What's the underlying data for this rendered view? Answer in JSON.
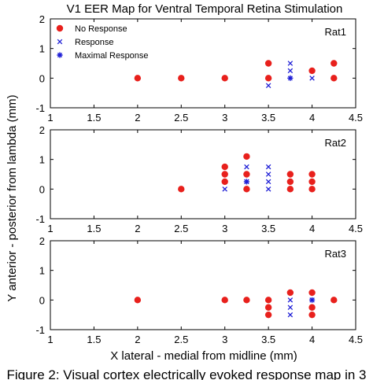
{
  "title": "V1 EER Map for Ventral Temporal Retina Stimulation",
  "xlabel": "X lateral - medial from midline (mm)",
  "ylabel": "Y anterior - posterior from lambda (mm)",
  "caption": "Figure 2: Visual cortex electrically evoked response map in 3",
  "legend": [
    {
      "label": "No Response",
      "marker": "dot",
      "color": "#e8201c"
    },
    {
      "label": "Response",
      "marker": "x",
      "color": "#1f1fd6"
    },
    {
      "label": "Maximal Response",
      "marker": "star",
      "color": "#1f1fd6"
    }
  ],
  "colors": {
    "no_response": "#e8201c",
    "response": "#1f1fd6"
  },
  "chart_data": [
    {
      "type": "scatter",
      "panel": "Rat1",
      "xlim": [
        1,
        4.5
      ],
      "ylim": [
        -1,
        2
      ],
      "xticks": [
        "1",
        "1.5",
        "2",
        "2.5",
        "3",
        "3.5",
        "4",
        "4.5"
      ],
      "yticks": [
        "-1",
        "0",
        "1",
        "2"
      ],
      "series": [
        {
          "name": "No Response",
          "points": [
            [
              2,
              0
            ],
            [
              2.5,
              0
            ],
            [
              3,
              0
            ],
            [
              3.5,
              0
            ],
            [
              3.5,
              0.5
            ],
            [
              4,
              0.25
            ],
            [
              4.25,
              0
            ],
            [
              4.25,
              0.5
            ]
          ]
        },
        {
          "name": "Response",
          "points": [
            [
              3.5,
              -0.25
            ],
            [
              3.75,
              0.5
            ],
            [
              3.75,
              0.25
            ],
            [
              4,
              0
            ]
          ]
        },
        {
          "name": "Maximal Response",
          "points": [
            [
              3.75,
              0
            ]
          ]
        }
      ]
    },
    {
      "type": "scatter",
      "panel": "Rat2",
      "xlim": [
        1,
        4.5
      ],
      "ylim": [
        -1,
        2
      ],
      "xticks": [
        "1",
        "1.5",
        "2",
        "2.5",
        "3",
        "3.5",
        "4",
        "4.5"
      ],
      "yticks": [
        "-1",
        "0",
        "1",
        "2"
      ],
      "series": [
        {
          "name": "No Response",
          "points": [
            [
              2.5,
              0
            ],
            [
              3,
              0.75
            ],
            [
              3,
              0.5
            ],
            [
              3,
              0.25
            ],
            [
              3.25,
              1.1
            ],
            [
              3.25,
              0.5
            ],
            [
              3.25,
              0
            ],
            [
              3.75,
              0.5
            ],
            [
              3.75,
              0.25
            ],
            [
              3.75,
              0
            ],
            [
              4,
              0.5
            ],
            [
              4,
              0.25
            ],
            [
              4,
              0
            ]
          ]
        },
        {
          "name": "Response",
          "points": [
            [
              3,
              0
            ],
            [
              3.25,
              0.75
            ],
            [
              3.25,
              0.25
            ],
            [
              3.5,
              0.75
            ],
            [
              3.5,
              0.5
            ],
            [
              3.5,
              0.25
            ],
            [
              3.5,
              0
            ]
          ]
        },
        {
          "name": "Maximal Response",
          "points": [
            [
              3.25,
              0.25
            ]
          ]
        }
      ]
    },
    {
      "type": "scatter",
      "panel": "Rat3",
      "xlim": [
        1,
        4.5
      ],
      "ylim": [
        -1,
        2
      ],
      "xticks": [
        "1",
        "1.5",
        "2",
        "2.5",
        "3",
        "3.5",
        "4",
        "4.5"
      ],
      "yticks": [
        "-1",
        "0",
        "1",
        "2"
      ],
      "series": [
        {
          "name": "No Response",
          "points": [
            [
              2,
              0
            ],
            [
              3,
              0
            ],
            [
              3.25,
              0
            ],
            [
              3.5,
              0
            ],
            [
              3.5,
              -0.25
            ],
            [
              3.5,
              -0.5
            ],
            [
              3.75,
              0.25
            ],
            [
              4,
              0.25
            ],
            [
              4,
              -0.25
            ],
            [
              4,
              -0.5
            ],
            [
              4.25,
              0
            ]
          ]
        },
        {
          "name": "Response",
          "points": [
            [
              3.75,
              0
            ],
            [
              3.75,
              -0.25
            ],
            [
              3.75,
              -0.5
            ],
            [
              4,
              0
            ]
          ]
        },
        {
          "name": "Maximal Response",
          "points": [
            [
              4,
              0
            ]
          ]
        }
      ]
    }
  ]
}
